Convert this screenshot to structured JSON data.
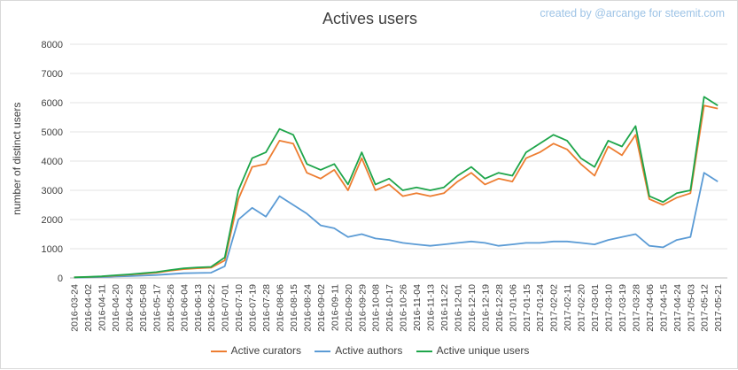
{
  "credit": "created by @arcange for steemit.com",
  "chart_data": {
    "type": "line",
    "title": "Actives users",
    "xlabel": "",
    "ylabel": "number of distinct users",
    "ylim": [
      0,
      8000
    ],
    "yticks": [
      0,
      1000,
      2000,
      3000,
      4000,
      5000,
      6000,
      7000,
      8000
    ],
    "grid": true,
    "legend_position": "bottom",
    "categories": [
      "2016-03-24",
      "2016-04-02",
      "2016-04-11",
      "2016-04-20",
      "2016-04-29",
      "2016-05-08",
      "2016-05-17",
      "2016-05-26",
      "2016-06-04",
      "2016-06-13",
      "2016-06-22",
      "2016-07-01",
      "2016-07-10",
      "2016-07-19",
      "2016-07-28",
      "2016-08-06",
      "2016-08-15",
      "2016-08-24",
      "2016-09-02",
      "2016-09-11",
      "2016-09-20",
      "2016-09-29",
      "2016-10-08",
      "2016-10-17",
      "2016-10-26",
      "2016-11-04",
      "2016-11-13",
      "2016-11-22",
      "2016-12-01",
      "2016-12-10",
      "2016-12-19",
      "2016-12-28",
      "2017-01-06",
      "2017-01-15",
      "2017-01-24",
      "2017-02-02",
      "2017-02-11",
      "2017-02-20",
      "2017-03-01",
      "2017-03-10",
      "2017-03-19",
      "2017-03-28",
      "2017-04-06",
      "2017-04-15",
      "2017-04-24",
      "2017-05-03",
      "2017-05-12",
      "2017-05-21"
    ],
    "series": [
      {
        "name": "Active curators",
        "color": "#ed7d31",
        "values": [
          20,
          30,
          50,
          80,
          110,
          140,
          180,
          250,
          300,
          330,
          350,
          600,
          2700,
          3800,
          3900,
          4700,
          4600,
          3600,
          3400,
          3700,
          3000,
          4100,
          3000,
          3200,
          2800,
          2900,
          2800,
          2900,
          3300,
          3600,
          3200,
          3400,
          3300,
          4100,
          4300,
          4600,
          4400,
          3900,
          3500,
          4500,
          4200,
          4900,
          2700,
          2500,
          2750,
          2900,
          5900,
          5800
        ]
      },
      {
        "name": "Active authors",
        "color": "#5b9bd5",
        "values": [
          10,
          20,
          30,
          50,
          60,
          80,
          100,
          130,
          160,
          170,
          180,
          400,
          2000,
          2400,
          2100,
          2800,
          2500,
          2200,
          1800,
          1700,
          1400,
          1500,
          1350,
          1300,
          1200,
          1150,
          1100,
          1150,
          1200,
          1250,
          1200,
          1100,
          1150,
          1200,
          1200,
          1250,
          1250,
          1200,
          1150,
          1300,
          1400,
          1500,
          1100,
          1050,
          1300,
          1400,
          3600,
          3300
        ]
      },
      {
        "name": "Active unique users",
        "color": "#1ea54a",
        "values": [
          20,
          35,
          55,
          90,
          120,
          160,
          200,
          270,
          330,
          360,
          380,
          700,
          3000,
          4100,
          4300,
          5100,
          4900,
          3900,
          3700,
          3900,
          3200,
          4300,
          3200,
          3400,
          3000,
          3100,
          3000,
          3100,
          3500,
          3800,
          3400,
          3600,
          3500,
          4300,
          4600,
          4900,
          4700,
          4100,
          3800,
          4700,
          4500,
          5200,
          2800,
          2600,
          2900,
          3000,
          6200,
          5900
        ]
      }
    ]
  }
}
